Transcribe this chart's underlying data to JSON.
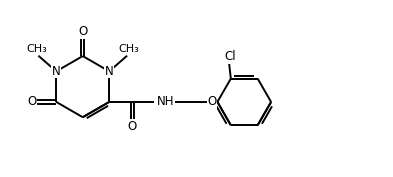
{
  "bg_color": "#ffffff",
  "line_color": "#000000",
  "line_width": 1.4,
  "font_size": 8.5,
  "figsize": [
    3.93,
    1.77
  ],
  "dpi": 100,
  "xlim": [
    0.0,
    10.5
  ],
  "ylim": [
    0.5,
    5.0
  ]
}
